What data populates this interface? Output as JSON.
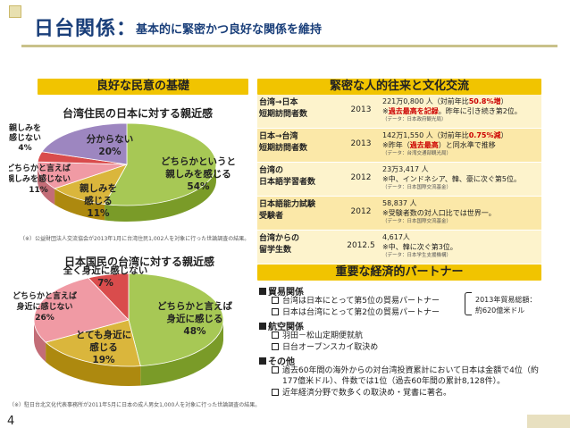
{
  "title": {
    "main": "日台関係：",
    "sub": "基本的に緊密かつ良好な関係を維持"
  },
  "left": {
    "band_label": "良好な民意の基礎",
    "chart1": {
      "title": "台湾住民の日本に対する親近感",
      "note": "（※）公益財団法人交流協会が2013年1月に台湾住民1,002人を対象に行った世論調査の結果。"
    },
    "chart2": {
      "title": "日本国民の台湾に対する親近感",
      "note": "（※）駐日台北文化代表事務所が2011年5月に日本の成人男女1,000人を対象に行った世論調査の結果。"
    }
  },
  "chart_data": [
    {
      "type": "pie",
      "title": "台湾住民の日本に対する親近感",
      "slices": [
        {
          "label": "どちらかというと親しみを感じる",
          "value": 54,
          "display": "どちらかというと\n親しみを感じる\n54%",
          "color": "#a7c855"
        },
        {
          "label": "親しみを感じる",
          "value": 11,
          "display": "親しみを\n感じる\n11%",
          "color": "#dab63c"
        },
        {
          "label": "どちらかと言えば親しみを感じない",
          "value": 11,
          "display": "どちらかと言えば\n親しみを感じない\n11%",
          "color": "#f09aa4"
        },
        {
          "label": "親しみを感じない",
          "value": 4,
          "display": "親しみを\n感じない\n4%",
          "color": "#d94c4c"
        },
        {
          "label": "分からない",
          "value": 20,
          "display": "分からない\n20%",
          "color": "#9d86c0"
        }
      ]
    },
    {
      "type": "pie",
      "title": "日本国民の台湾に対する親近感",
      "slices": [
        {
          "label": "どちらかと言えば身近に感じる",
          "value": 48,
          "display": "どちらかと言えば\n身近に感じる\n48%",
          "color": "#a7c855"
        },
        {
          "label": "とても身近に感じる",
          "value": 19,
          "display": "とても身近に\n感じる\n19%",
          "color": "#dab63c"
        },
        {
          "label": "どちらかと言えば身近に感じない",
          "value": 26,
          "display": "どちらかと言えば\n身近に感じない\n26%",
          "color": "#f09aa4"
        },
        {
          "label": "全く身近に感じない",
          "value": 7,
          "display": "全く身近に感じない\n7%",
          "color": "#d94c4c"
        }
      ]
    }
  ],
  "right": {
    "band_label": "緊密な人的往来と文化交流",
    "rows": [
      {
        "label": "台湾→日本\n短期訪問者数",
        "year": "2013",
        "line1": "221万0,800 人（対前年比",
        "line1_red": "50.8%増",
        "line1_end": "）",
        "line2_pre": "※",
        "line2_red": "過去最高を記録",
        "line2_end": "。昨年に引き続き第2位。",
        "source": "（データ：日本政府観光局）"
      },
      {
        "label": "日本→台湾\n短期訪問者数",
        "year": "2013",
        "line1": "142万1,550 人（対前年比",
        "line1_red": "0.75%減",
        "line1_end": "）",
        "line2_pre": "※昨年（",
        "line2_red": "過去最高",
        "line2_end": "）と同水準で推移",
        "source": "（データ：台湾交通部観光局）"
      },
      {
        "label": "台湾の\n日本語学習者数",
        "year": "2012",
        "line1": "23万3,417 人",
        "line1_red": "",
        "line1_end": "",
        "line2_pre": "※中、インドネシア、韓、豪に次ぐ第5位。",
        "line2_red": "",
        "line2_end": "",
        "source": "（データ：日本国際交流基金）"
      },
      {
        "label": "日本語能力試験\n受験者",
        "year": "2012",
        "line1": "58,837 人",
        "line1_red": "",
        "line1_end": "",
        "line2_pre": "※受験者数の対人口比では世界一。",
        "line2_red": "",
        "line2_end": "",
        "source": "（データ：日本国際交流基金）"
      },
      {
        "label": "台湾からの\n留学生数",
        "year": "2012.5",
        "line1": "4,617人",
        "line1_red": "",
        "line1_end": "",
        "line2_pre": "※中、韓に次ぐ第3位。",
        "line2_red": "",
        "line2_end": "",
        "source": "（データ：日本学生支援機構）"
      }
    ]
  },
  "partner": {
    "band_label": "重要な経済的パートナー",
    "trade_head": "貿易関係",
    "trade_items": [
      "台湾は日本にとって第5位の貿易パートナー",
      "日本は台湾にとって第2位の貿易パートナー"
    ],
    "trade_total_1": "2013年貿易総額：",
    "trade_total_2": "約620億米ドル",
    "air_head": "航空関係",
    "air_items": [
      "羽田－松山定期便就航",
      "日台オープンスカイ取決め"
    ],
    "other_head": "その他",
    "other_items": [
      "過去60年間の海外からの対台湾投資累計において日本は金額で4位（約",
      "177億米ドル）、件数では1位（過去60年間の累計8,128件）。",
      "近年経済分野で数多くの取決め・覚書に著名。"
    ]
  },
  "page_number": "4"
}
